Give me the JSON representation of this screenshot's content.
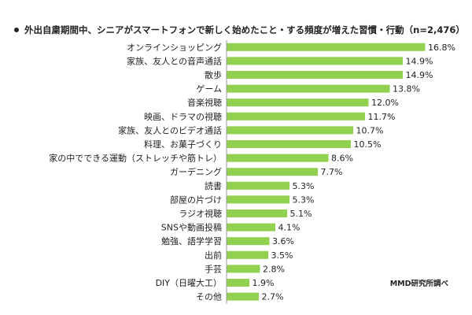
{
  "title": "外出自粛期間中、シニアがスマートフォンで新しく始めたこと・する頻度が増えた習慣・行動（n=2,476）",
  "credit": "MMD研究所調べ",
  "colors": {
    "bar": "#92d050",
    "axis": "#999999",
    "text": "#222222"
  },
  "chart_data": {
    "type": "bar",
    "orientation": "horizontal",
    "title": "外出自粛期間中、シニアがスマートフォンで新しく始めたこと・する頻度が増えた習慣・行動（n=2,476）",
    "categories": [
      "オンラインショッピング",
      "家族、友人との音声通話",
      "散歩",
      "ゲーム",
      "音楽視聴",
      "映画、ドラマの視聴",
      "家族、友人とのビデオ通話",
      "料理、お菓子づくり",
      "家の中でできる運動（ストレッチや筋トレ）",
      "ガーデニング",
      "読書",
      "部屋の片づけ",
      "ラジオ視聴",
      "SNSや動画投稿",
      "勉強、語学学習",
      "出前",
      "手芸",
      "DIY（日曜大工）",
      "その他"
    ],
    "values": [
      16.8,
      14.9,
      14.9,
      13.8,
      12.0,
      11.7,
      10.7,
      10.5,
      8.6,
      7.7,
      5.3,
      5.3,
      5.1,
      4.1,
      3.6,
      3.5,
      2.8,
      1.9,
      2.7
    ],
    "value_labels": [
      "16.8%",
      "14.9%",
      "14.9%",
      "13.8%",
      "12.0%",
      "11.7%",
      "10.7%",
      "10.5%",
      "8.6%",
      "7.7%",
      "5.3%",
      "5.3%",
      "5.1%",
      "4.1%",
      "3.6%",
      "3.5%",
      "2.8%",
      "1.9%",
      "2.7%"
    ],
    "unit": "%",
    "xlim": [
      0,
      20
    ],
    "grid": false,
    "legend": "none"
  }
}
